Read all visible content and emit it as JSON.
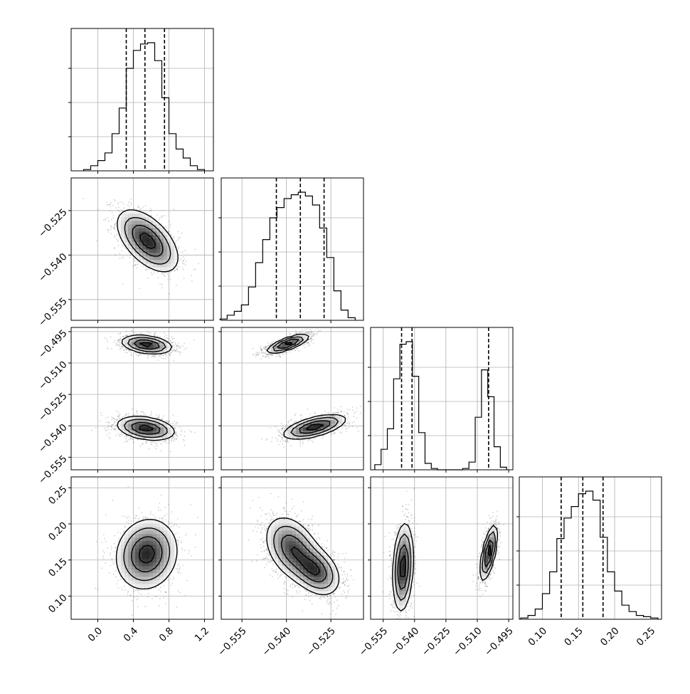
{
  "chart_data": {
    "type": "corner",
    "title": "",
    "grid": true,
    "parameters": [
      {
        "range": [
          -0.3,
          1.3
        ],
        "ticks": [
          0.0,
          0.4,
          0.8,
          1.2
        ],
        "tick_labels": [
          "0.0",
          "0.4",
          "0.8",
          "1.2"
        ]
      },
      {
        "range": [
          -0.562,
          -0.514
        ],
        "ticks": [
          -0.555,
          -0.54,
          -0.525
        ],
        "tick_labels": [
          "−0.555",
          "−0.540",
          "−0.525"
        ]
      },
      {
        "range": [
          -0.561,
          -0.493
        ],
        "ticks": [
          -0.555,
          -0.54,
          -0.525,
          -0.51,
          -0.495
        ],
        "tick_labels": [
          "−0.555",
          "−0.540",
          "−0.525",
          "−0.510",
          "−0.495"
        ]
      },
      {
        "range": [
          0.068,
          0.265
        ],
        "ticks": [
          0.1,
          0.15,
          0.2,
          0.25
        ],
        "tick_labels": [
          "0.10",
          "0.15",
          "0.20",
          "0.25"
        ]
      }
    ],
    "quantiles": [
      [
        0.32,
        0.53,
        0.75
      ],
      [
        -0.5434,
        -0.5353,
        -0.5273
      ],
      [
        -0.5462,
        -0.5412,
        -0.5046
      ],
      [
        0.126,
        0.156,
        0.184
      ]
    ],
    "histograms": [
      {
        "bin_centers": [
          -0.12,
          -0.04,
          0.04,
          0.12,
          0.2,
          0.28,
          0.36,
          0.44,
          0.52,
          0.6,
          0.68,
          0.76,
          0.84,
          0.92,
          1.0,
          1.08,
          1.16
        ],
        "counts": [
          1,
          4,
          8,
          14,
          29,
          49,
          80,
          94,
          99,
          100,
          86,
          57,
          29,
          17,
          10,
          4,
          1
        ]
      },
      {
        "bin_centers": [
          -0.5612,
          -0.5588,
          -0.5564,
          -0.554,
          -0.5516,
          -0.5492,
          -0.5468,
          -0.5444,
          -0.542,
          -0.5396,
          -0.5372,
          -0.5348,
          -0.5324,
          -0.53,
          -0.5276,
          -0.5252,
          -0.5228,
          -0.5204,
          -0.518
        ],
        "counts": [
          1,
          4,
          7,
          12,
          26,
          45,
          63,
          80,
          88,
          95,
          98,
          100,
          97,
          90,
          72,
          49,
          23,
          8,
          2
        ]
      },
      {
        "bin_centers": [
          -0.5575,
          -0.5545,
          -0.5515,
          -0.5485,
          -0.5455,
          -0.5425,
          -0.5395,
          -0.5365,
          -0.5335,
          -0.5305,
          -0.5275,
          -0.5245,
          -0.5215,
          -0.5185,
          -0.5155,
          -0.5125,
          -0.5095,
          -0.5065,
          -0.5035,
          -0.5005,
          -0.4975
        ],
        "counts": [
          4,
          16,
          32,
          71,
          98,
          100,
          73,
          29,
          5,
          1,
          0,
          0,
          0,
          0,
          1,
          6,
          41,
          78,
          57,
          18,
          2
        ]
      },
      {
        "bin_centers": [
          0.075,
          0.085,
          0.095,
          0.105,
          0.115,
          0.125,
          0.135,
          0.145,
          0.155,
          0.165,
          0.175,
          0.185,
          0.195,
          0.205,
          0.215,
          0.225,
          0.235,
          0.245,
          0.255
        ],
        "counts": [
          1,
          3,
          8,
          20,
          37,
          63,
          79,
          88,
          98,
          100,
          93,
          64,
          37,
          22,
          11,
          6,
          3,
          2,
          1
        ]
      }
    ],
    "density_modes": [
      {
        "pair": [
          1,
          0
        ],
        "clusters": [
          {
            "center": [
              0.56,
              -0.5352
            ],
            "sd": [
              0.17,
              0.0052
            ],
            "corr": -0.55
          }
        ]
      },
      {
        "pair": [
          2,
          0
        ],
        "clusters": [
          {
            "center": [
              0.55,
              -0.5012
            ],
            "sd": [
              0.14,
              0.0022
            ],
            "corr": -0.3
          },
          {
            "center": [
              0.54,
              -0.5412
            ],
            "sd": [
              0.16,
              0.0028
            ],
            "corr": -0.3
          }
        ]
      },
      {
        "pair": [
          2,
          1
        ],
        "clusters": [
          {
            "center": [
              -0.5395,
              -0.5008
            ],
            "sd": [
              0.0035,
              0.0022
            ],
            "corr": 0.75
          },
          {
            "center": [
              -0.5305,
              -0.5405
            ],
            "sd": [
              0.0052,
              0.0029
            ],
            "corr": 0.6
          }
        ]
      },
      {
        "pair": [
          3,
          0
        ],
        "clusters": [
          {
            "center": [
              0.55,
              0.158
            ],
            "sd": [
              0.17,
              0.024
            ],
            "corr": 0.1
          }
        ]
      },
      {
        "pair": [
          3,
          1
        ],
        "clusters": [
          {
            "center": [
              -0.538,
              0.166
            ],
            "sd": [
              0.0045,
              0.022
            ],
            "corr": -0.35
          },
          {
            "center": [
              -0.53,
              0.135
            ],
            "sd": [
              0.004,
              0.017
            ],
            "corr": -0.35
          }
        ]
      },
      {
        "pair": [
          3,
          2
        ],
        "clusters": [
          {
            "center": [
              -0.5455,
              0.14
            ],
            "sd": [
              0.0024,
              0.03
            ],
            "corr": 0.2
          },
          {
            "center": [
              -0.5045,
              0.16
            ],
            "sd": [
              0.002,
              0.019
            ],
            "corr": 0.65
          }
        ]
      }
    ]
  }
}
